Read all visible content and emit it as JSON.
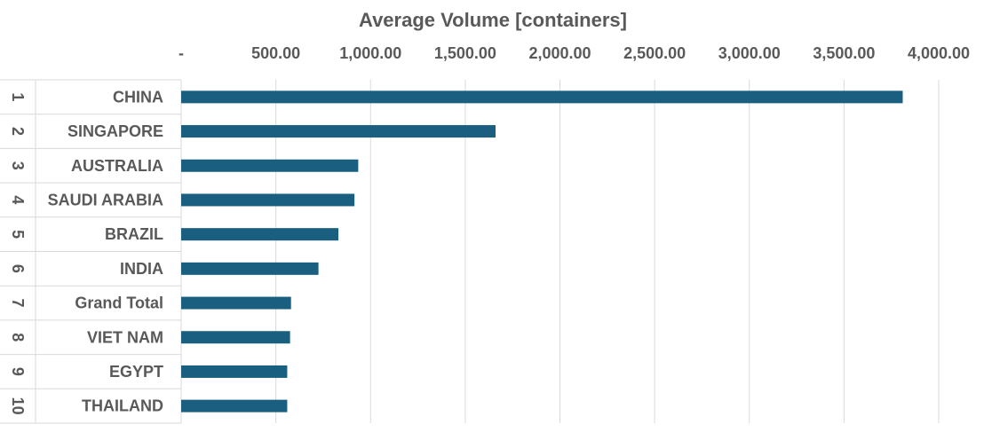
{
  "chart_data": {
    "type": "bar",
    "orientation": "horizontal",
    "title": "Average Volume [containers]",
    "xlabel": "Average Volume [containers]",
    "ylabel": "",
    "xlim": [
      0,
      4000
    ],
    "x_ticks": [
      0,
      500,
      1000,
      1500,
      2000,
      2500,
      3000,
      3500,
      4000
    ],
    "x_tick_labels": [
      "-",
      "500.00",
      "1,000.00",
      "1,500.00",
      "2,000.00",
      "2,500.00",
      "3,000.00",
      "3,500.00",
      "4,000.00"
    ],
    "axis_position": "top",
    "grid": true,
    "color": "#1a5e80",
    "ranks": [
      "1",
      "2",
      "3",
      "4",
      "5",
      "6",
      "7",
      "8",
      "9",
      "10"
    ],
    "categories": [
      "CHINA",
      "SINGAPORE",
      "AUSTRALIA",
      "SAUDI ARABIA",
      "BRAZIL",
      "INDIA",
      "Grand Total",
      "VIET NAM",
      "EGYPT",
      "THAILAND"
    ],
    "values": [
      3810,
      1660,
      935,
      915,
      830,
      725,
      580,
      575,
      560,
      560
    ]
  }
}
